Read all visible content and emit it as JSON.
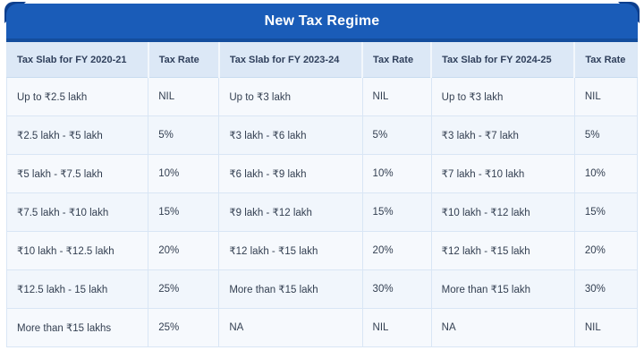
{
  "title": "New Tax Regime",
  "colors": {
    "title_bar_blue": "#1a5cb8",
    "corner_accent_navy": "#0d3f8e",
    "header_row_bg": "#dce8f6",
    "row_bg": "#f5f9fd",
    "grid_border": "#d9e6f5",
    "text_dark": "#333f51",
    "title_text": "#ffffff"
  },
  "chart_data": {
    "type": "table",
    "title": "New Tax Regime",
    "columns": [
      "Tax Slab for FY 2020-21",
      "Tax Rate",
      "Tax Slab for FY 2023-24",
      "Tax Rate",
      "Tax Slab for FY 2024-25",
      "Tax Rate"
    ],
    "rows": [
      [
        "Up to ₹2.5 lakh",
        "NIL",
        "Up to ₹3 lakh",
        "NIL",
        "Up to ₹3 lakh",
        "NIL"
      ],
      [
        "₹2.5 lakh - ₹5 lakh",
        "5%",
        "₹3 lakh - ₹6 lakh",
        "5%",
        "₹3 lakh - ₹7 lakh",
        "5%"
      ],
      [
        "₹5 lakh - ₹7.5 lakh",
        "10%",
        "₹6 lakh - ₹9 lakh",
        "10%",
        "₹7 lakh - ₹10 lakh",
        "10%"
      ],
      [
        "₹7.5 lakh - ₹10 lakh",
        "15%",
        "₹9 lakh - ₹12 lakh",
        "15%",
        "₹10 lakh - ₹12 lakh",
        "15%"
      ],
      [
        "₹10 lakh - ₹12.5 lakh",
        "20%",
        "₹12 lakh - ₹15 lakh",
        "20%",
        "₹12 lakh - ₹15 lakh",
        "20%"
      ],
      [
        "₹12.5 lakh - 15 lakh",
        "25%",
        "More than ₹15 lakh",
        "30%",
        "More than ₹15 lakh",
        "30%"
      ],
      [
        "More than ₹15 lakhs",
        "25%",
        "NA",
        "NIL",
        "NA",
        "NIL"
      ]
    ]
  }
}
